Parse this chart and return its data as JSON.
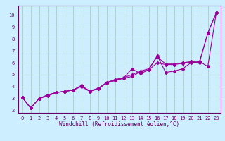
{
  "line1_x": [
    0,
    1,
    2,
    3,
    4,
    5,
    6,
    7,
    8,
    9,
    10,
    11,
    12,
    13,
    14,
    15,
    16,
    17,
    18,
    19,
    20,
    21,
    22,
    23
  ],
  "line1_y": [
    3.1,
    2.2,
    3.0,
    3.2,
    3.5,
    3.6,
    3.7,
    4.0,
    3.6,
    3.8,
    4.3,
    4.5,
    4.7,
    5.5,
    5.1,
    5.4,
    6.6,
    5.2,
    5.3,
    5.5,
    6.0,
    6.1,
    5.7,
    10.2
  ],
  "line2_x": [
    0,
    1,
    2,
    3,
    4,
    5,
    6,
    7,
    8,
    9,
    10,
    11,
    12,
    13,
    14,
    15,
    16,
    17,
    18,
    19,
    20,
    21,
    22,
    23
  ],
  "line2_y": [
    3.1,
    2.2,
    3.0,
    3.3,
    3.5,
    3.6,
    3.7,
    4.1,
    3.6,
    3.85,
    4.35,
    4.6,
    4.75,
    5.0,
    5.3,
    5.5,
    6.5,
    5.9,
    5.9,
    6.0,
    6.1,
    6.05,
    8.5,
    10.2
  ],
  "line3_x": [
    0,
    1,
    2,
    3,
    4,
    5,
    6,
    7,
    8,
    9,
    10,
    11,
    12,
    13,
    14,
    15,
    16,
    17,
    18,
    19,
    20,
    21,
    22,
    23
  ],
  "line3_y": [
    3.1,
    2.2,
    3.0,
    3.3,
    3.5,
    3.6,
    3.7,
    4.05,
    3.65,
    3.85,
    4.3,
    4.55,
    4.7,
    4.85,
    5.25,
    5.4,
    6.0,
    5.85,
    5.85,
    5.95,
    6.05,
    6.0,
    8.5,
    10.2
  ],
  "line_color": "#990099",
  "bg_color": "#cceeff",
  "grid_color": "#aacccc",
  "axis_color": "#660066",
  "tick_color": "#660066",
  "xlabel": "Windchill (Refroidissement éolien,°C)",
  "xlim": [
    -0.5,
    23.5
  ],
  "ylim": [
    1.8,
    10.8
  ],
  "xticks": [
    0,
    1,
    2,
    3,
    4,
    5,
    6,
    7,
    8,
    9,
    10,
    11,
    12,
    13,
    14,
    15,
    16,
    17,
    18,
    19,
    20,
    21,
    22,
    23
  ],
  "yticks": [
    2,
    3,
    4,
    5,
    6,
    7,
    8,
    9,
    10
  ],
  "marker": "D",
  "markersize": 2,
  "linewidth": 0.8,
  "tick_fontsize": 5,
  "label_fontsize": 5.5
}
